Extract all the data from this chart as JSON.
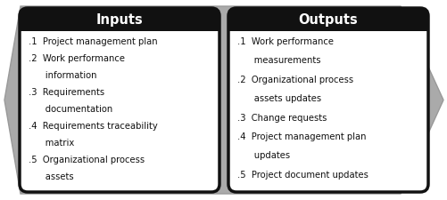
{
  "title_inputs": "Inputs",
  "title_outputs": "Outputs",
  "inputs_lines": [
    ".1  Project management plan",
    ".2  Work performance",
    "      information",
    ".3  Requirements",
    "      documentation",
    ".4  Requirements traceability",
    "      matrix",
    ".5  Organizational process",
    "      assets"
  ],
  "outputs_lines": [
    ".1  Work performance",
    "      measurements",
    ".2  Organizational process",
    "      assets updates",
    ".3  Change requests",
    ".4  Project management plan",
    "      updates",
    ".5  Project document updates"
  ],
  "box_bg": "#ffffff",
  "box_border": "#111111",
  "header_bg": "#111111",
  "header_fg": "#ffffff",
  "arrow_color": "#aaaaaa",
  "arrow_edge": "#999999",
  "text_color": "#111111",
  "fig_bg": "#ffffff",
  "fig_w": 5.02,
  "fig_h": 2.25,
  "dpi": 100
}
